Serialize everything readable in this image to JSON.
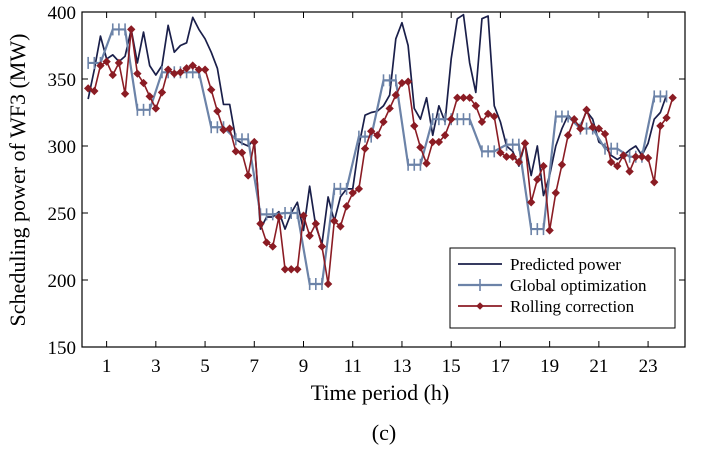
{
  "chart_data": {
    "type": "line",
    "caption": "(c)",
    "xlabel": "Time period (h)",
    "ylabel": "Scheduling power of WF3 (MW)",
    "xlim": [
      0,
      24.5
    ],
    "ylim": [
      150,
      400
    ],
    "xticks": [
      1,
      3,
      5,
      7,
      9,
      11,
      13,
      15,
      17,
      19,
      21,
      23
    ],
    "yticks": [
      150,
      200,
      250,
      300,
      350,
      400
    ],
    "grid": false,
    "legend_position": "lower-right",
    "series": [
      {
        "name": "Predicted power",
        "color": "#1a1f4a",
        "marker": "none",
        "points": [
          [
            0.25,
            335
          ],
          [
            0.5,
            357
          ],
          [
            0.75,
            382
          ],
          [
            1.0,
            365
          ],
          [
            1.25,
            368
          ],
          [
            1.5,
            363
          ],
          [
            1.75,
            367
          ],
          [
            2.0,
            387
          ],
          [
            2.25,
            362
          ],
          [
            2.5,
            385
          ],
          [
            2.75,
            360
          ],
          [
            3.0,
            353
          ],
          [
            3.25,
            360
          ],
          [
            3.5,
            390
          ],
          [
            3.75,
            370
          ],
          [
            4.0,
            375
          ],
          [
            4.25,
            377
          ],
          [
            4.5,
            396
          ],
          [
            4.75,
            387
          ],
          [
            5.0,
            380
          ],
          [
            5.25,
            370
          ],
          [
            5.5,
            358
          ],
          [
            5.75,
            331
          ],
          [
            6.0,
            331
          ],
          [
            6.25,
            305
          ],
          [
            6.5,
            302
          ],
          [
            6.75,
            300
          ],
          [
            7.0,
            305
          ],
          [
            7.25,
            238
          ],
          [
            7.5,
            247
          ],
          [
            7.75,
            247
          ],
          [
            8.0,
            251
          ],
          [
            8.25,
            238
          ],
          [
            8.5,
            250
          ],
          [
            8.75,
            258
          ],
          [
            9.0,
            237
          ],
          [
            9.25,
            270
          ],
          [
            9.5,
            240
          ],
          [
            9.75,
            227
          ],
          [
            10.0,
            262
          ],
          [
            10.25,
            244
          ],
          [
            10.5,
            262
          ],
          [
            10.75,
            268
          ],
          [
            11.0,
            268
          ],
          [
            11.25,
            300
          ],
          [
            11.5,
            323
          ],
          [
            11.75,
            325
          ],
          [
            12.0,
            326
          ],
          [
            12.25,
            330
          ],
          [
            12.5,
            338
          ],
          [
            12.75,
            380
          ],
          [
            13.0,
            392
          ],
          [
            13.25,
            375
          ],
          [
            13.5,
            328
          ],
          [
            13.75,
            320
          ],
          [
            14.0,
            336
          ],
          [
            14.25,
            308
          ],
          [
            14.5,
            330
          ],
          [
            14.75,
            318
          ],
          [
            15.0,
            365
          ],
          [
            15.25,
            395
          ],
          [
            15.5,
            398
          ],
          [
            15.75,
            362
          ],
          [
            16.0,
            340
          ],
          [
            16.25,
            395
          ],
          [
            16.5,
            397
          ],
          [
            16.75,
            330
          ],
          [
            17.0,
            318
          ],
          [
            17.25,
            300
          ],
          [
            17.5,
            296
          ],
          [
            17.75,
            285
          ],
          [
            18.0,
            302
          ],
          [
            18.25,
            278
          ],
          [
            18.5,
            300
          ],
          [
            18.75,
            263
          ],
          [
            19.0,
            278
          ],
          [
            19.25,
            300
          ],
          [
            19.5,
            313
          ],
          [
            19.75,
            323
          ],
          [
            20.0,
            318
          ],
          [
            20.25,
            315
          ],
          [
            20.5,
            326
          ],
          [
            20.75,
            320
          ],
          [
            21.0,
            303
          ],
          [
            21.25,
            300
          ],
          [
            21.5,
            293
          ],
          [
            21.75,
            290
          ],
          [
            22.0,
            293
          ],
          [
            22.25,
            297
          ],
          [
            22.5,
            300
          ],
          [
            22.75,
            293
          ],
          [
            23.0,
            302
          ],
          [
            23.25,
            320
          ],
          [
            23.5,
            325
          ],
          [
            23.75,
            338
          ]
        ]
      },
      {
        "name": "Global optimization",
        "color": "#6c83a8",
        "marker": "plus",
        "segments": [
          {
            "level": 362,
            "from": 0.25,
            "to": 0.75
          },
          {
            "level": 387,
            "from": 1.25,
            "to": 1.75
          },
          {
            "level": 327,
            "from": 2.25,
            "to": 2.75
          },
          {
            "level": 355,
            "from": 3.25,
            "to": 4.75
          },
          {
            "level": 314,
            "from": 5.25,
            "to": 5.75
          },
          {
            "level": 305,
            "from": 6.25,
            "to": 6.75
          },
          {
            "level": 249,
            "from": 7.25,
            "to": 7.75
          },
          {
            "level": 250,
            "from": 8.25,
            "to": 8.75
          },
          {
            "level": 197,
            "from": 9.25,
            "to": 9.75
          },
          {
            "level": 268,
            "from": 10.25,
            "to": 10.75
          },
          {
            "level": 307,
            "from": 11.25,
            "to": 11.75
          },
          {
            "level": 349,
            "from": 12.25,
            "to": 12.75
          },
          {
            "level": 286,
            "from": 13.25,
            "to": 13.75
          },
          {
            "level": 320,
            "from": 14.25,
            "to": 15.75
          },
          {
            "level": 296,
            "from": 16.25,
            "to": 16.75
          },
          {
            "level": 301,
            "from": 17.25,
            "to": 17.75
          },
          {
            "level": 238,
            "from": 18.25,
            "to": 18.75
          },
          {
            "level": 322,
            "from": 19.25,
            "to": 19.75
          },
          {
            "level": 313,
            "from": 20.25,
            "to": 20.75
          },
          {
            "level": 298,
            "from": 21.25,
            "to": 21.75
          },
          {
            "level": 292,
            "from": 22.25,
            "to": 22.75
          },
          {
            "level": 337,
            "from": 23.25,
            "to": 23.75
          }
        ]
      },
      {
        "name": "Rolling correction",
        "color": "#8b1c24",
        "marker": "diamond",
        "points": [
          [
            0.25,
            343
          ],
          [
            0.5,
            341
          ],
          [
            0.75,
            360
          ],
          [
            1.0,
            363
          ],
          [
            1.25,
            353
          ],
          [
            1.5,
            362
          ],
          [
            1.75,
            339
          ],
          [
            2.0,
            387
          ],
          [
            2.25,
            354
          ],
          [
            2.5,
            347
          ],
          [
            2.75,
            337
          ],
          [
            3.0,
            328
          ],
          [
            3.25,
            340
          ],
          [
            3.5,
            357
          ],
          [
            3.75,
            354
          ],
          [
            4.0,
            355
          ],
          [
            4.25,
            358
          ],
          [
            4.5,
            360
          ],
          [
            4.75,
            357
          ],
          [
            5.0,
            357
          ],
          [
            5.25,
            342
          ],
          [
            5.5,
            326
          ],
          [
            5.75,
            312
          ],
          [
            6.0,
            313
          ],
          [
            6.25,
            296
          ],
          [
            6.5,
            295
          ],
          [
            6.75,
            278
          ],
          [
            7.0,
            303
          ],
          [
            7.25,
            242
          ],
          [
            7.5,
            228
          ],
          [
            7.75,
            225
          ],
          [
            8.0,
            247
          ],
          [
            8.25,
            208
          ],
          [
            8.5,
            208
          ],
          [
            8.75,
            208
          ],
          [
            9.0,
            248
          ],
          [
            9.25,
            233
          ],
          [
            9.5,
            242
          ],
          [
            9.75,
            225
          ],
          [
            10.0,
            197
          ],
          [
            10.25,
            244
          ],
          [
            10.5,
            240
          ],
          [
            10.75,
            255
          ],
          [
            11.0,
            265
          ],
          [
            11.25,
            268
          ],
          [
            11.5,
            298
          ],
          [
            11.75,
            311
          ],
          [
            12.0,
            308
          ],
          [
            12.25,
            318
          ],
          [
            12.5,
            328
          ],
          [
            12.75,
            338
          ],
          [
            13.0,
            347
          ],
          [
            13.25,
            348
          ],
          [
            13.5,
            315
          ],
          [
            13.75,
            299
          ],
          [
            14.0,
            287
          ],
          [
            14.25,
            303
          ],
          [
            14.5,
            303
          ],
          [
            14.75,
            308
          ],
          [
            15.0,
            320
          ],
          [
            15.25,
            336
          ],
          [
            15.5,
            336
          ],
          [
            15.75,
            336
          ],
          [
            16.0,
            330
          ],
          [
            16.25,
            318
          ],
          [
            16.5,
            324
          ],
          [
            16.75,
            322
          ],
          [
            17.0,
            295
          ],
          [
            17.25,
            292
          ],
          [
            17.5,
            292
          ],
          [
            17.75,
            288
          ],
          [
            18.0,
            302
          ],
          [
            18.25,
            258
          ],
          [
            18.5,
            275
          ],
          [
            18.75,
            285
          ],
          [
            19.0,
            237
          ],
          [
            19.25,
            265
          ],
          [
            19.5,
            286
          ],
          [
            19.75,
            308
          ],
          [
            20.0,
            320
          ],
          [
            20.25,
            313
          ],
          [
            20.5,
            327
          ],
          [
            20.75,
            314
          ],
          [
            21.0,
            313
          ],
          [
            21.25,
            309
          ],
          [
            21.5,
            288
          ],
          [
            21.75,
            285
          ],
          [
            22.0,
            293
          ],
          [
            22.25,
            281
          ],
          [
            22.5,
            292
          ],
          [
            22.75,
            292
          ],
          [
            23.0,
            291
          ],
          [
            23.25,
            273
          ],
          [
            23.5,
            315
          ],
          [
            23.75,
            321
          ],
          [
            24.0,
            336
          ]
        ]
      }
    ]
  }
}
